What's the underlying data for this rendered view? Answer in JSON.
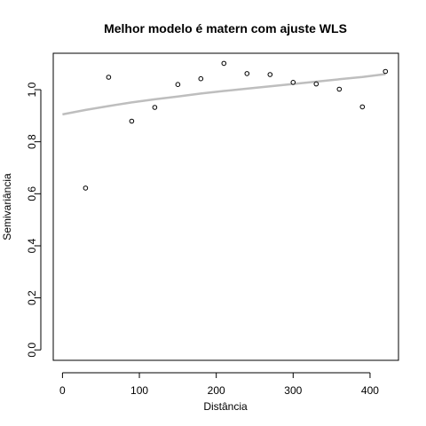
{
  "chart_data": {
    "type": "scatter",
    "title": "Melhor modelo é matern com ajuste  WLS",
    "xlabel": "Distância",
    "ylabel": "Semivariância",
    "xlim": [
      -12,
      437
    ],
    "ylim": [
      -0.04,
      1.14
    ],
    "x_ticks": [
      0,
      100,
      200,
      300,
      400
    ],
    "x_tick_labels": [
      "0",
      "100",
      "200",
      "300",
      "400"
    ],
    "y_ticks": [
      0.0,
      0.2,
      0.4,
      0.6,
      0.8,
      1.0
    ],
    "y_tick_labels": [
      "0.0",
      "0.2",
      "0.4",
      "0.6",
      "0.8",
      "1.0"
    ],
    "grid": false,
    "series": [
      {
        "kind": "points",
        "x": [
          30,
          60,
          90,
          120,
          150,
          180,
          210,
          240,
          270,
          300,
          330,
          360,
          390,
          420
        ],
        "y": [
          0.622,
          1.048,
          0.879,
          0.932,
          1.02,
          1.042,
          1.101,
          1.062,
          1.058,
          1.028,
          1.022,
          1.002,
          0.934,
          1.07
        ]
      },
      {
        "kind": "fitted-curve",
        "color": "#bebebe",
        "x": [
          0,
          30,
          60,
          90,
          120,
          150,
          180,
          210,
          240,
          270,
          300,
          330,
          360,
          390,
          420
        ],
        "y": [
          0.905,
          0.922,
          0.937,
          0.951,
          0.963,
          0.974,
          0.985,
          0.995,
          1.004,
          1.013,
          1.022,
          1.031,
          1.04,
          1.049,
          1.06
        ]
      }
    ]
  }
}
